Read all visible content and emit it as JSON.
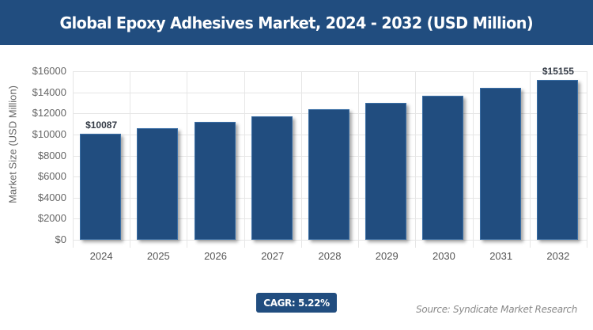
{
  "header": {
    "title": "Global Epoxy Adhesives Market, 2024 - 2032 (USD Million)"
  },
  "footer": {
    "cagr_label": "CAGR: 5.22%",
    "source": "Source: Syndicate Market Research"
  },
  "colors": {
    "bar": "#214d7f",
    "header_bg": "#214d7f",
    "grid": "#e6e6e6"
  },
  "chart_data": {
    "type": "bar",
    "title": "Global Epoxy Adhesives Market, 2024 - 2032 (USD Million)",
    "xlabel": "",
    "ylabel": "Market Size (USD Million)",
    "categories": [
      "2024",
      "2025",
      "2026",
      "2027",
      "2028",
      "2029",
      "2030",
      "2031",
      "2032"
    ],
    "values": [
      10087,
      10614,
      11168,
      11751,
      12364,
      13010,
      13689,
      14403,
      15155
    ],
    "data_labels": {
      "0": "$10087",
      "8": "$15155"
    },
    "ylim": [
      0,
      16000
    ],
    "yticks": [
      "$0",
      "$2000",
      "$4000",
      "$6000",
      "$8000",
      "$10000",
      "$12000",
      "$14000",
      "$16000"
    ],
    "grid": true,
    "legend": "none",
    "annotations": [
      "CAGR: 5.22%",
      "Source: Syndicate Market Research"
    ]
  }
}
